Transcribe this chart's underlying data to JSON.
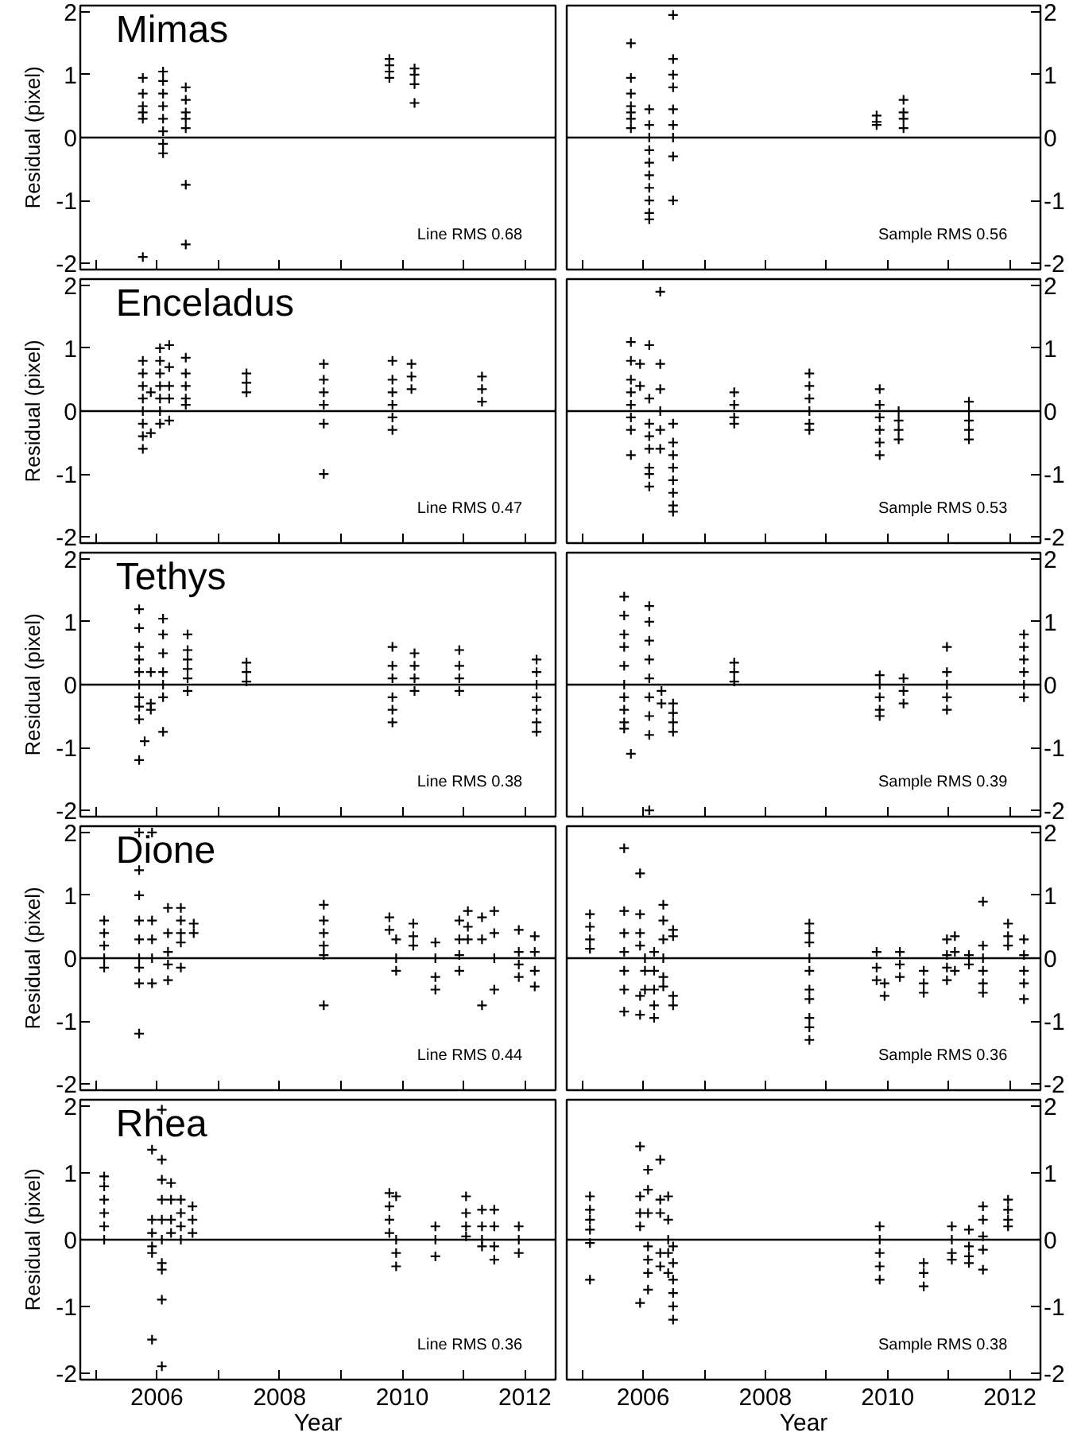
{
  "chart_data": [
    {
      "type": "scatter",
      "title": "Mimas",
      "ylabel": "Residual (pixel)",
      "annotations": [
        "Line RMS 0.68"
      ],
      "marker": "cross",
      "color": "#000000",
      "tick_labels": "y",
      "xlim": [
        2004.75,
        2012.5
      ],
      "ylim": [
        -2.1,
        2.1
      ],
      "xticks": [
        {
          "value": 2005,
          "label": null
        },
        {
          "value": 2006,
          "label": null
        },
        {
          "value": 2007,
          "label": null
        },
        {
          "value": 2008,
          "label": null
        },
        {
          "value": 2009,
          "label": null
        },
        {
          "value": 2010,
          "label": null
        },
        {
          "value": 2011,
          "label": null
        },
        {
          "value": 2012,
          "label": null
        }
      ],
      "yticks": [
        -2,
        -1,
        0,
        1,
        2
      ],
      "ref_lines": [
        {
          "axis": "y",
          "value": 0
        }
      ],
      "x": [
        2005.77,
        2005.77,
        2005.77,
        2005.77,
        2005.77,
        2005.77,
        2006.1,
        2006.1,
        2006.1,
        2006.1,
        2006.1,
        2006.1,
        2006.1,
        2006.1,
        2006.47,
        2006.47,
        2006.47,
        2006.47,
        2006.47,
        2006.47,
        2006.47,
        2009.79,
        2009.79,
        2009.79,
        2009.79,
        2010.2,
        2010.2,
        2010.2,
        2010.2
      ],
      "values": [
        0.95,
        0.7,
        0.5,
        0.4,
        0.3,
        -1.9,
        1.05,
        0.9,
        0.7,
        0.5,
        0.3,
        0.1,
        -0.1,
        -0.25,
        0.8,
        0.6,
        0.4,
        0.3,
        0.15,
        -0.75,
        -1.7,
        1.25,
        1.15,
        1.05,
        0.95,
        1.1,
        1.0,
        0.85,
        0.55
      ]
    },
    {
      "type": "scatter",
      "annotations": [
        "Sample RMS 0.56"
      ],
      "marker": "cross",
      "color": "#000000",
      "tick_labels": "y",
      "xlim": [
        2004.75,
        2012.5
      ],
      "ylim": [
        -2.1,
        2.1
      ],
      "xticks": [
        {
          "value": 2005,
          "label": null
        },
        {
          "value": 2006,
          "label": null
        },
        {
          "value": 2007,
          "label": null
        },
        {
          "value": 2008,
          "label": null
        },
        {
          "value": 2009,
          "label": null
        },
        {
          "value": 2010,
          "label": null
        },
        {
          "value": 2011,
          "label": null
        },
        {
          "value": 2012,
          "label": null
        }
      ],
      "yticks": [
        -2,
        -1,
        0,
        1,
        2
      ],
      "ref_lines": [
        {
          "axis": "y",
          "value": 0
        }
      ],
      "x": [
        2005.8,
        2005.8,
        2005.8,
        2005.8,
        2005.8,
        2005.8,
        2005.8,
        2006.1,
        2006.1,
        2006.1,
        2006.1,
        2006.1,
        2006.1,
        2006.1,
        2006.1,
        2006.1,
        2006.1,
        2006.49,
        2006.49,
        2006.49,
        2006.49,
        2006.49,
        2006.49,
        2006.49,
        2006.49,
        2006.49,
        2009.82,
        2009.82,
        2009.82,
        2010.26,
        2010.26,
        2010.26,
        2010.26
      ],
      "values": [
        1.5,
        0.95,
        0.7,
        0.5,
        0.4,
        0.3,
        0.15,
        0.45,
        0.2,
        0,
        -0.2,
        -0.4,
        -0.6,
        -0.8,
        -1.0,
        -1.2,
        -1.3,
        1.95,
        1.25,
        1.0,
        0.8,
        0.45,
        0.2,
        0,
        -0.3,
        -1.0,
        0.35,
        0.25,
        0.2,
        0.6,
        0.4,
        0.3,
        0.15
      ]
    },
    {
      "type": "scatter",
      "title": "Enceladus",
      "ylabel": "Residual (pixel)",
      "annotations": [
        "Line RMS 0.47"
      ],
      "marker": "cross",
      "color": "#000000",
      "tick_labels": "y",
      "xlim": [
        2004.75,
        2012.5
      ],
      "ylim": [
        -2.1,
        2.1
      ],
      "xticks": [
        {
          "value": 2005,
          "label": null
        },
        {
          "value": 2006,
          "label": null
        },
        {
          "value": 2007,
          "label": null
        },
        {
          "value": 2008,
          "label": null
        },
        {
          "value": 2009,
          "label": null
        },
        {
          "value": 2010,
          "label": null
        },
        {
          "value": 2011,
          "label": null
        },
        {
          "value": 2012,
          "label": null
        }
      ],
      "yticks": [
        -2,
        -1,
        0,
        1,
        2
      ],
      "ref_lines": [
        {
          "axis": "y",
          "value": 0
        }
      ],
      "x": [
        2005.77,
        2005.77,
        2005.77,
        2005.77,
        2005.77,
        2005.77,
        2005.77,
        2005.77,
        2005.9,
        2005.9,
        2006.05,
        2006.05,
        2006.05,
        2006.05,
        2006.05,
        2006.05,
        2006.05,
        2006.2,
        2006.2,
        2006.2,
        2006.2,
        2006.2,
        2006.47,
        2006.47,
        2006.47,
        2006.47,
        2006.47,
        2007.46,
        2007.46,
        2007.46,
        2008.72,
        2008.72,
        2008.72,
        2008.72,
        2008.72,
        2008.72,
        2009.84,
        2009.84,
        2009.84,
        2009.84,
        2009.84,
        2009.84,
        2010.15,
        2010.15,
        2010.15,
        2011.3,
        2011.3,
        2011.3
      ],
      "values": [
        0.8,
        0.6,
        0.4,
        0.2,
        0,
        -0.2,
        -0.4,
        -0.6,
        0.3,
        -0.35,
        1.0,
        0.8,
        0.6,
        0.4,
        0.2,
        0,
        -0.2,
        1.05,
        0.7,
        0.4,
        0.2,
        -0.15,
        0.85,
        0.6,
        0.4,
        0.2,
        0.1,
        0.6,
        0.45,
        0.3,
        0.75,
        0.5,
        0.3,
        0.1,
        -0.2,
        -1.0,
        0.8,
        0.5,
        0.3,
        0.1,
        -0.1,
        -0.3,
        0.75,
        0.55,
        0.35,
        0.55,
        0.35,
        0.15
      ]
    },
    {
      "type": "scatter",
      "annotations": [
        "Sample RMS 0.53"
      ],
      "marker": "cross",
      "color": "#000000",
      "tick_labels": "y",
      "xlim": [
        2004.75,
        2012.5
      ],
      "ylim": [
        -2.1,
        2.1
      ],
      "xticks": [
        {
          "value": 2005,
          "label": null
        },
        {
          "value": 2006,
          "label": null
        },
        {
          "value": 2007,
          "label": null
        },
        {
          "value": 2008,
          "label": null
        },
        {
          "value": 2009,
          "label": null
        },
        {
          "value": 2010,
          "label": null
        },
        {
          "value": 2011,
          "label": null
        },
        {
          "value": 2012,
          "label": null
        }
      ],
      "yticks": [
        -2,
        -1,
        0,
        1,
        2
      ],
      "ref_lines": [
        {
          "axis": "y",
          "value": 0
        }
      ],
      "x": [
        2005.8,
        2005.8,
        2005.8,
        2005.8,
        2005.8,
        2005.8,
        2005.8,
        2005.8,
        2005.95,
        2005.95,
        2006.1,
        2006.1,
        2006.1,
        2006.1,
        2006.1,
        2006.1,
        2006.1,
        2006.1,
        2006.28,
        2006.28,
        2006.28,
        2006.28,
        2006.28,
        2006.28,
        2006.49,
        2006.49,
        2006.49,
        2006.49,
        2006.49,
        2006.49,
        2006.49,
        2006.49,
        2007.49,
        2007.49,
        2007.49,
        2007.49,
        2008.72,
        2008.72,
        2008.72,
        2008.72,
        2008.72,
        2008.72,
        2009.87,
        2009.87,
        2009.87,
        2009.87,
        2009.87,
        2009.87,
        2010.18,
        2010.18,
        2010.18,
        2010.18,
        2011.33,
        2011.33,
        2011.33,
        2011.33,
        2011.33
      ],
      "values": [
        1.1,
        0.8,
        0.5,
        0.3,
        0.1,
        -0.1,
        -0.3,
        -0.7,
        0.75,
        0.4,
        1.05,
        0.2,
        -0.2,
        -0.4,
        -0.6,
        -0.9,
        -1.0,
        -1.2,
        1.9,
        0.75,
        0.35,
        0,
        -0.3,
        -0.6,
        -0.2,
        -0.5,
        -0.7,
        -0.9,
        -1.1,
        -1.3,
        -1.5,
        -1.6,
        0.3,
        0.1,
        -0.1,
        -0.2,
        0.6,
        0.4,
        0.2,
        0,
        -0.2,
        -0.3,
        0.35,
        0.1,
        -0.1,
        -0.3,
        -0.5,
        -0.7,
        0,
        -0.15,
        -0.3,
        -0.45,
        0.15,
        0,
        -0.15,
        -0.3,
        -0.45
      ]
    },
    {
      "type": "scatter",
      "title": "Tethys",
      "ylabel": "Residual (pixel)",
      "annotations": [
        "Line RMS 0.38"
      ],
      "marker": "cross",
      "color": "#000000",
      "tick_labels": "y",
      "xlim": [
        2004.75,
        2012.5
      ],
      "ylim": [
        -2.1,
        2.1
      ],
      "xticks": [
        {
          "value": 2005,
          "label": null
        },
        {
          "value": 2006,
          "label": null
        },
        {
          "value": 2007,
          "label": null
        },
        {
          "value": 2008,
          "label": null
        },
        {
          "value": 2009,
          "label": null
        },
        {
          "value": 2010,
          "label": null
        },
        {
          "value": 2011,
          "label": null
        },
        {
          "value": 2012,
          "label": null
        }
      ],
      "yticks": [
        -2,
        -1,
        0,
        1,
        2
      ],
      "ref_lines": [
        {
          "axis": "y",
          "value": 0
        }
      ],
      "x": [
        2005.71,
        2005.71,
        2005.71,
        2005.71,
        2005.71,
        2005.71,
        2005.71,
        2005.71,
        2005.71,
        2005.71,
        2005.8,
        2005.9,
        2005.9,
        2005.9,
        2006.1,
        2006.1,
        2006.1,
        2006.1,
        2006.1,
        2006.1,
        2006.1,
        2006.5,
        2006.5,
        2006.5,
        2006.5,
        2006.5,
        2006.5,
        2007.46,
        2007.46,
        2007.46,
        2009.84,
        2009.84,
        2009.84,
        2009.84,
        2009.84,
        2009.84,
        2010.2,
        2010.2,
        2010.2,
        2010.2,
        2010.93,
        2010.93,
        2010.93,
        2010.93,
        2012.19,
        2012.19,
        2012.19,
        2012.19,
        2012.19,
        2012.19,
        2012.19
      ],
      "values": [
        1.2,
        0.9,
        0.6,
        0.4,
        0.2,
        0,
        -0.2,
        -0.35,
        -0.55,
        -1.2,
        -0.9,
        0.2,
        -0.3,
        -0.4,
        1.05,
        0.8,
        0.5,
        0.2,
        0,
        -0.2,
        -0.75,
        0.8,
        0.55,
        0.4,
        0.25,
        0.1,
        -0.1,
        0.35,
        0.2,
        0.05,
        0.6,
        0.3,
        0.1,
        -0.2,
        -0.4,
        -0.6,
        0.5,
        0.3,
        0.1,
        -0.1,
        0.55,
        0.3,
        0.1,
        -0.1,
        0.4,
        0.2,
        0,
        -0.2,
        -0.4,
        -0.6,
        -0.75
      ]
    },
    {
      "type": "scatter",
      "annotations": [
        "Sample RMS 0.39"
      ],
      "marker": "cross",
      "color": "#000000",
      "tick_labels": "y",
      "xlim": [
        2004.75,
        2012.5
      ],
      "ylim": [
        -2.1,
        2.1
      ],
      "xticks": [
        {
          "value": 2005,
          "label": null
        },
        {
          "value": 2006,
          "label": null
        },
        {
          "value": 2007,
          "label": null
        },
        {
          "value": 2008,
          "label": null
        },
        {
          "value": 2009,
          "label": null
        },
        {
          "value": 2010,
          "label": null
        },
        {
          "value": 2011,
          "label": null
        },
        {
          "value": 2012,
          "label": null
        }
      ],
      "yticks": [
        -2,
        -1,
        0,
        1,
        2
      ],
      "ref_lines": [
        {
          "axis": "y",
          "value": 0
        }
      ],
      "x": [
        2005.69,
        2005.69,
        2005.69,
        2005.69,
        2005.69,
        2005.69,
        2005.69,
        2005.69,
        2005.69,
        2005.69,
        2005.8,
        2006.1,
        2006.1,
        2006.1,
        2006.1,
        2006.1,
        2006.1,
        2006.1,
        2006.1,
        2006.1,
        2006.3,
        2006.3,
        2006.49,
        2006.49,
        2006.49,
        2006.49,
        2007.49,
        2007.49,
        2007.49,
        2009.87,
        2009.87,
        2009.87,
        2009.87,
        2009.87,
        2010.26,
        2010.26,
        2010.26,
        2010.97,
        2010.97,
        2010.97,
        2010.97,
        2010.97,
        2012.23,
        2012.23,
        2012.23,
        2012.23,
        2012.23,
        2012.23
      ],
      "values": [
        1.4,
        1.1,
        0.8,
        0.6,
        0.3,
        0,
        -0.2,
        -0.4,
        -0.6,
        -0.7,
        -1.1,
        1.25,
        1.0,
        0.7,
        0.4,
        0.1,
        -0.2,
        -0.5,
        -0.8,
        -2.0,
        -0.1,
        -0.3,
        -0.3,
        -0.45,
        -0.6,
        -0.75,
        0.35,
        0.2,
        0.05,
        0.15,
        0,
        -0.2,
        -0.4,
        -0.5,
        0.1,
        -0.1,
        -0.3,
        0.6,
        0.2,
        0,
        -0.2,
        -0.4,
        0.8,
        0.6,
        0.4,
        0.2,
        0,
        -0.2
      ]
    },
    {
      "type": "scatter",
      "title": "Dione",
      "ylabel": "Residual (pixel)",
      "annotations": [
        "Line RMS 0.44"
      ],
      "marker": "cross",
      "color": "#000000",
      "tick_labels": "y",
      "xlim": [
        2004.75,
        2012.5
      ],
      "ylim": [
        -2.1,
        2.1
      ],
      "xticks": [
        {
          "value": 2005,
          "label": null
        },
        {
          "value": 2006,
          "label": null
        },
        {
          "value": 2007,
          "label": null
        },
        {
          "value": 2008,
          "label": null
        },
        {
          "value": 2009,
          "label": null
        },
        {
          "value": 2010,
          "label": null
        },
        {
          "value": 2011,
          "label": null
        },
        {
          "value": 2012,
          "label": null
        }
      ],
      "yticks": [
        -2,
        -1,
        0,
        1,
        2
      ],
      "ref_lines": [
        {
          "axis": "y",
          "value": 0
        }
      ],
      "x": [
        2005.14,
        2005.14,
        2005.14,
        2005.14,
        2005.14,
        2005.71,
        2005.71,
        2005.71,
        2005.71,
        2005.71,
        2005.71,
        2005.71,
        2005.71,
        2005.71,
        2005.92,
        2005.92,
        2005.92,
        2005.92,
        2005.92,
        2006.18,
        2006.18,
        2006.18,
        2006.18,
        2006.18,
        2006.39,
        2006.39,
        2006.39,
        2006.39,
        2006.39,
        2006.6,
        2006.6,
        2008.72,
        2008.72,
        2008.72,
        2008.72,
        2008.72,
        2008.72,
        2009.79,
        2009.79,
        2009.9,
        2009.9,
        2009.9,
        2010.18,
        2010.18,
        2010.18,
        2010.54,
        2010.54,
        2010.54,
        2010.54,
        2010.93,
        2010.93,
        2010.93,
        2010.93,
        2011.07,
        2011.07,
        2011.07,
        2011.3,
        2011.3,
        2011.3,
        2011.5,
        2011.5,
        2011.5,
        2011.5,
        2011.9,
        2011.9,
        2011.9,
        2011.9,
        2012.16,
        2012.16,
        2012.16,
        2012.16
      ],
      "values": [
        0.6,
        0.4,
        0.2,
        0,
        -0.15,
        2.0,
        1.4,
        1.0,
        0.6,
        0.3,
        0,
        -0.15,
        -0.4,
        -1.2,
        2.0,
        0.6,
        0.3,
        0,
        -0.4,
        0.8,
        0.4,
        0.1,
        -0.1,
        -0.35,
        0.8,
        0.6,
        0.4,
        0.25,
        -0.15,
        0.55,
        0.4,
        0.85,
        0.6,
        0.4,
        0.2,
        0.05,
        -0.75,
        0.65,
        0.45,
        0.3,
        0,
        -0.2,
        0.55,
        0.35,
        0.2,
        0.25,
        0,
        -0.3,
        -0.5,
        0.6,
        0.3,
        0.05,
        -0.2,
        0.75,
        0.5,
        0.3,
        0.65,
        0.3,
        -0.75,
        0.75,
        0.4,
        0,
        -0.5,
        0.45,
        0.1,
        -0.1,
        -0.3,
        0.35,
        0.1,
        -0.2,
        -0.45
      ]
    },
    {
      "type": "scatter",
      "annotations": [
        "Sample RMS 0.36"
      ],
      "marker": "cross",
      "color": "#000000",
      "tick_labels": "y",
      "xlim": [
        2004.75,
        2012.5
      ],
      "ylim": [
        -2.1,
        2.1
      ],
      "xticks": [
        {
          "value": 2005,
          "label": null
        },
        {
          "value": 2006,
          "label": null
        },
        {
          "value": 2007,
          "label": null
        },
        {
          "value": 2008,
          "label": null
        },
        {
          "value": 2009,
          "label": null
        },
        {
          "value": 2010,
          "label": null
        },
        {
          "value": 2011,
          "label": null
        },
        {
          "value": 2012,
          "label": null
        }
      ],
      "yticks": [
        -2,
        -1,
        0,
        1,
        2
      ],
      "ref_lines": [
        {
          "axis": "y",
          "value": 0
        }
      ],
      "x": [
        2005.13,
        2005.13,
        2005.13,
        2005.13,
        2005.69,
        2005.69,
        2005.69,
        2005.69,
        2005.69,
        2005.69,
        2005.69,
        2005.95,
        2005.95,
        2005.95,
        2005.95,
        2005.95,
        2005.95,
        2006.03,
        2006.03,
        2006.03,
        2006.18,
        2006.18,
        2006.18,
        2006.18,
        2006.18,
        2006.33,
        2006.33,
        2006.33,
        2006.33,
        2006.33,
        2006.33,
        2006.49,
        2006.49,
        2006.49,
        2006.49,
        2008.72,
        2008.72,
        2008.72,
        2008.72,
        2008.72,
        2008.72,
        2008.72,
        2008.72,
        2008.72,
        2008.72,
        2009.82,
        2009.82,
        2009.82,
        2009.95,
        2009.95,
        2010.2,
        2010.2,
        2010.2,
        2010.59,
        2010.59,
        2010.59,
        2010.97,
        2010.97,
        2010.97,
        2010.97,
        2011.1,
        2011.1,
        2011.1,
        2011.33,
        2011.33,
        2011.56,
        2011.56,
        2011.56,
        2011.56,
        2011.56,
        2011.56,
        2011.97,
        2011.97,
        2011.97,
        2012.23,
        2012.23,
        2012.23,
        2012.23,
        2012.23
      ],
      "values": [
        0.7,
        0.5,
        0.3,
        0.15,
        1.75,
        0.75,
        0.4,
        0.1,
        -0.2,
        -0.5,
        -0.85,
        1.35,
        0.7,
        0.4,
        0.2,
        -0.6,
        -0.9,
        0,
        -0.2,
        -0.5,
        0.1,
        -0.2,
        -0.5,
        -0.75,
        -0.95,
        0.85,
        0.6,
        0.3,
        0,
        -0.3,
        -0.45,
        0.45,
        0.35,
        -0.6,
        -0.75,
        0.55,
        0.4,
        0.25,
        0,
        -0.2,
        -0.5,
        -0.65,
        -0.95,
        -1.1,
        -1.3,
        0.1,
        -0.15,
        -0.35,
        -0.4,
        -0.6,
        0.1,
        -0.1,
        -0.3,
        -0.2,
        -0.4,
        -0.55,
        0.3,
        0.05,
        -0.15,
        -0.35,
        0.35,
        0.1,
        -0.2,
        0.05,
        -0.1,
        0.9,
        0.2,
        0,
        -0.2,
        -0.4,
        -0.55,
        0.55,
        0.35,
        0.2,
        0.3,
        0.05,
        -0.2,
        -0.4,
        -0.65
      ]
    },
    {
      "type": "scatter",
      "title": "Rhea",
      "ylabel": "Residual (pixel)",
      "xlabel": "Year",
      "annotations": [
        "Line RMS 0.36"
      ],
      "marker": "cross",
      "color": "#000000",
      "xlim": [
        2004.75,
        2012.5
      ],
      "ylim": [
        -2.1,
        2.1
      ],
      "xticks": [
        {
          "value": 2005,
          "label": null
        },
        {
          "value": 2006,
          "label": "2006"
        },
        {
          "value": 2007,
          "label": null
        },
        {
          "value": 2008,
          "label": "2008"
        },
        {
          "value": 2009,
          "label": null
        },
        {
          "value": 2010,
          "label": "2010"
        },
        {
          "value": 2011,
          "label": null
        },
        {
          "value": 2012,
          "label": "2012"
        }
      ],
      "yticks": [
        -2,
        -1,
        0,
        1,
        2
      ],
      "ref_lines": [
        {
          "axis": "y",
          "value": 0
        }
      ],
      "x": [
        2005.14,
        2005.14,
        2005.14,
        2005.14,
        2005.14,
        2005.14,
        2005.92,
        2005.92,
        2005.92,
        2005.92,
        2005.92,
        2005.92,
        2006.08,
        2006.08,
        2006.08,
        2006.08,
        2006.08,
        2006.08,
        2006.08,
        2006.08,
        2006.08,
        2006.08,
        2006.23,
        2006.23,
        2006.23,
        2006.23,
        2006.39,
        2006.39,
        2006.39,
        2006.39,
        2006.58,
        2006.58,
        2006.58,
        2009.79,
        2009.79,
        2009.79,
        2009.79,
        2009.9,
        2009.9,
        2009.9,
        2009.9,
        2010.54,
        2010.54,
        2010.54,
        2011.04,
        2011.04,
        2011.04,
        2011.04,
        2011.3,
        2011.3,
        2011.3,
        2011.3,
        2011.5,
        2011.5,
        2011.5,
        2011.5,
        2011.9,
        2011.9,
        2011.9
      ],
      "values": [
        0.95,
        0.8,
        0.6,
        0.4,
        0.2,
        0,
        1.35,
        0.3,
        0.1,
        -0.1,
        -0.2,
        -1.5,
        1.95,
        1.2,
        0.9,
        0.6,
        0.3,
        0,
        -0.35,
        -0.45,
        -0.9,
        -1.9,
        0.85,
        0.6,
        0.3,
        0.1,
        0.6,
        0.4,
        0.2,
        0,
        0.5,
        0.3,
        0.1,
        0.7,
        0.5,
        0.3,
        0.1,
        0.65,
        0,
        -0.2,
        -0.4,
        0.2,
        0,
        -0.25,
        0.65,
        0.4,
        0.2,
        0.05,
        0.45,
        0.2,
        0,
        -0.1,
        0.45,
        0.2,
        -0.1,
        -0.3,
        0.2,
        0,
        -0.2
      ]
    },
    {
      "type": "scatter",
      "xlabel": "Year",
      "annotations": [
        "Sample RMS 0.38"
      ],
      "marker": "cross",
      "color": "#000000",
      "xlim": [
        2004.75,
        2012.5
      ],
      "ylim": [
        -2.1,
        2.1
      ],
      "xticks": [
        {
          "value": 2005,
          "label": null
        },
        {
          "value": 2006,
          "label": "2006"
        },
        {
          "value": 2007,
          "label": null
        },
        {
          "value": 2008,
          "label": "2008"
        },
        {
          "value": 2009,
          "label": null
        },
        {
          "value": 2010,
          "label": "2010"
        },
        {
          "value": 2011,
          "label": null
        },
        {
          "value": 2012,
          "label": "2012"
        }
      ],
      "yticks": [
        -2,
        -1,
        0,
        1,
        2
      ],
      "ref_lines": [
        {
          "axis": "y",
          "value": 0
        }
      ],
      "x": [
        2005.13,
        2005.13,
        2005.13,
        2005.13,
        2005.13,
        2005.13,
        2005.95,
        2005.95,
        2005.95,
        2005.95,
        2005.95,
        2006.08,
        2006.08,
        2006.08,
        2006.08,
        2006.08,
        2006.08,
        2006.08,
        2006.28,
        2006.28,
        2006.28,
        2006.28,
        2006.28,
        2006.41,
        2006.41,
        2006.41,
        2006.41,
        2006.41,
        2006.49,
        2006.49,
        2006.49,
        2006.49,
        2006.49,
        2006.49,
        2009.87,
        2009.87,
        2009.87,
        2009.87,
        2009.87,
        2010.59,
        2010.59,
        2010.59,
        2011.05,
        2011.05,
        2011.05,
        2011.05,
        2011.33,
        2011.33,
        2011.33,
        2011.33,
        2011.56,
        2011.56,
        2011.56,
        2011.56,
        2011.56,
        2011.97,
        2011.97,
        2011.97,
        2011.97
      ],
      "values": [
        0.65,
        0.45,
        0.3,
        0.15,
        -0.05,
        -0.6,
        1.4,
        0.65,
        0.4,
        0.2,
        -0.95,
        1.05,
        0.75,
        0.4,
        -0.1,
        -0.3,
        -0.5,
        -0.75,
        1.2,
        0.6,
        0.4,
        -0.2,
        -0.4,
        0.65,
        0.3,
        0,
        -0.2,
        -0.5,
        -0.1,
        -0.35,
        -0.6,
        -0.8,
        -1.0,
        -1.2,
        0.2,
        0,
        -0.2,
        -0.4,
        -0.6,
        -0.35,
        -0.5,
        -0.7,
        0.2,
        0,
        -0.2,
        -0.3,
        0.15,
        -0.1,
        -0.25,
        -0.35,
        0.5,
        0.3,
        0.05,
        -0.15,
        -0.45,
        0.6,
        0.45,
        0.3,
        0.2
      ]
    }
  ]
}
